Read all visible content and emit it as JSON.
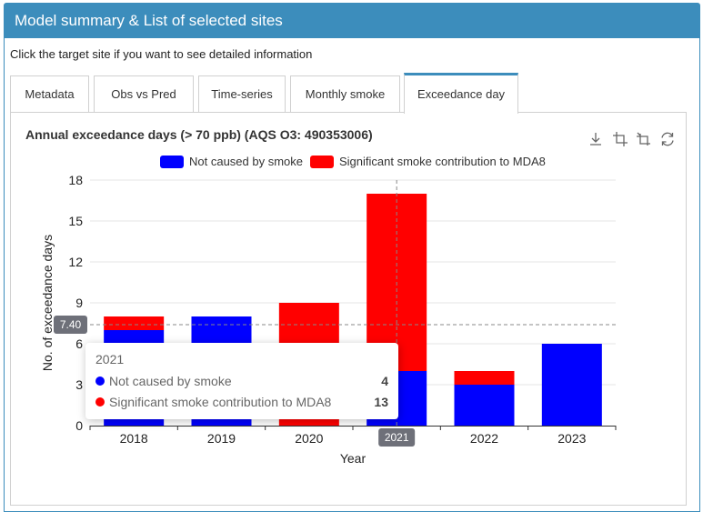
{
  "panel": {
    "title": "Model summary & List of selected sites",
    "instruction": "Click the target site if you want to see detailed information"
  },
  "tabs": [
    {
      "label": "Metadata",
      "active": false
    },
    {
      "label": "Obs vs Pred",
      "active": false
    },
    {
      "label": "Time-series",
      "active": false
    },
    {
      "label": "Monthly smoke",
      "active": false
    },
    {
      "label": "Exceedance day",
      "active": true
    }
  ],
  "toolbox": [
    "download-icon",
    "crop-icon",
    "restore-zoom-icon",
    "refresh-icon"
  ],
  "chart_data": {
    "type": "bar",
    "stacked": true,
    "title": "Annual exceedance days (> 70 ppb) (AQS O3: 490353006)",
    "xlabel": "Year",
    "ylabel": "No. of exceedance days",
    "categories": [
      "2018",
      "2019",
      "2020",
      "2021",
      "2022",
      "2023"
    ],
    "series": [
      {
        "name": "Not caused by smoke",
        "color": "#0000ff",
        "values": [
          7,
          8,
          0,
          4,
          3,
          6
        ]
      },
      {
        "name": "Significant smoke contribution to MDA8",
        "color": "#ff0000",
        "values": [
          1,
          0,
          9,
          13,
          1,
          0
        ]
      }
    ],
    "ylim": [
      0,
      18
    ],
    "yticks": [
      0,
      3,
      6,
      9,
      12,
      15,
      18
    ],
    "grid": true,
    "legend_position": "top",
    "crosshair": {
      "category": "2021",
      "y_value": 7.4,
      "y_label": "7.40",
      "x_label": "2021"
    }
  },
  "tooltip": {
    "title": "2021",
    "rows": [
      {
        "name": "Not caused by smoke",
        "value": "4",
        "color": "#0000ff"
      },
      {
        "name": "Significant smoke contribution to MDA8",
        "value": "13",
        "color": "#ff0000"
      }
    ]
  }
}
